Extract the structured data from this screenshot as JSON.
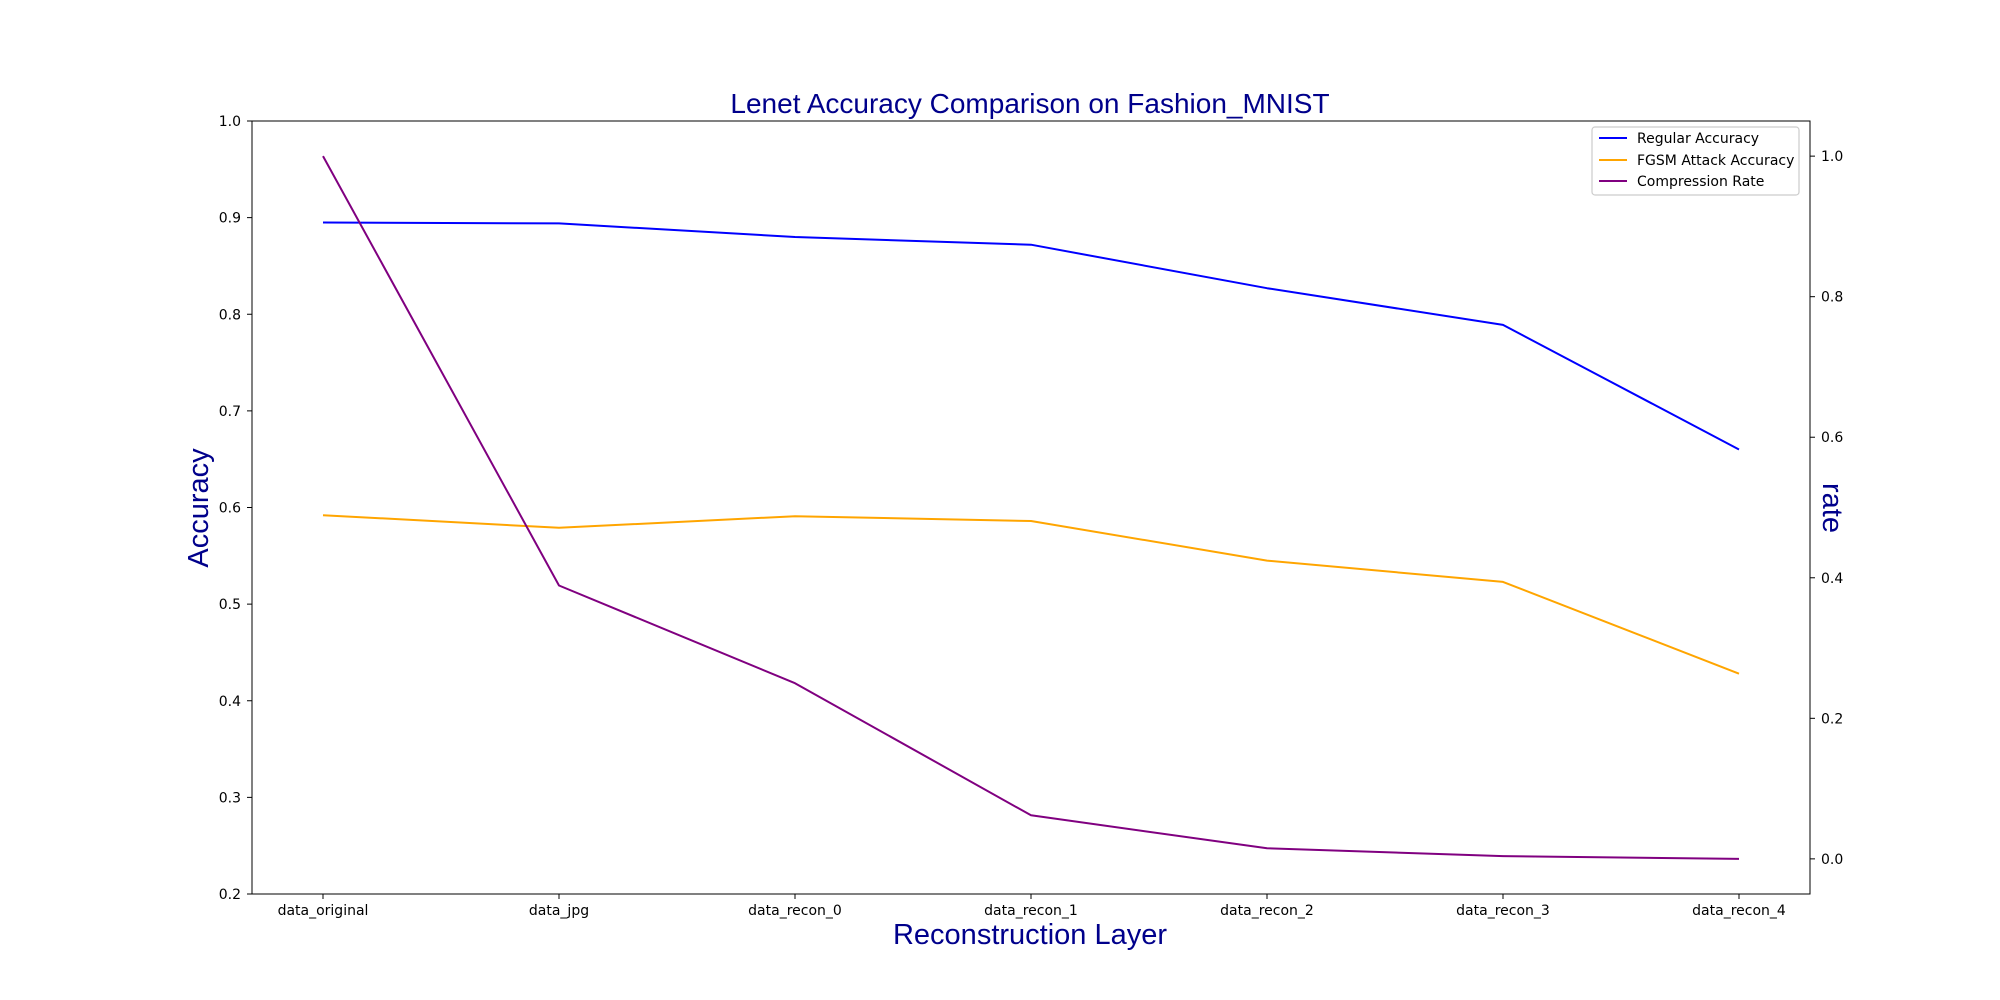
{
  "chart_data": {
    "type": "line",
    "title": "Lenet Accuracy Comparison on Fashion_MNIST",
    "xlabel": "Reconstruction Layer",
    "ylabel": "Accuracy",
    "ylabel_right": "rate",
    "categories": [
      "data_original",
      "data_jpg",
      "data_recon_0",
      "data_recon_1",
      "data_recon_2",
      "data_recon_3",
      "data_recon_4"
    ],
    "ylim": [
      0.2,
      1.0
    ],
    "yticks": [
      "0.2",
      "0.3",
      "0.4",
      "0.5",
      "0.6",
      "0.7",
      "0.8",
      "0.9",
      "1.0"
    ],
    "ylim_right": [
      -0.05,
      1.05
    ],
    "yticks_right": [
      "0.0",
      "0.2",
      "0.4",
      "0.6",
      "0.8",
      "1.0"
    ],
    "grid": false,
    "legend_position": "top-right",
    "series": [
      {
        "name": "Regular Accuracy",
        "axis": "left",
        "color": "#0000ff",
        "values": [
          0.895,
          0.894,
          0.88,
          0.872,
          0.827,
          0.789,
          0.66
        ]
      },
      {
        "name": "FGSM Attack Accuracy",
        "axis": "left",
        "color": "#ffa500",
        "values": [
          0.592,
          0.579,
          0.591,
          0.586,
          0.545,
          0.523,
          0.428
        ]
      },
      {
        "name": "Compression Rate",
        "axis": "right",
        "color": "#800080",
        "values": [
          1.0,
          0.389,
          0.25,
          0.062,
          0.015,
          0.004,
          0.0
        ]
      }
    ]
  }
}
